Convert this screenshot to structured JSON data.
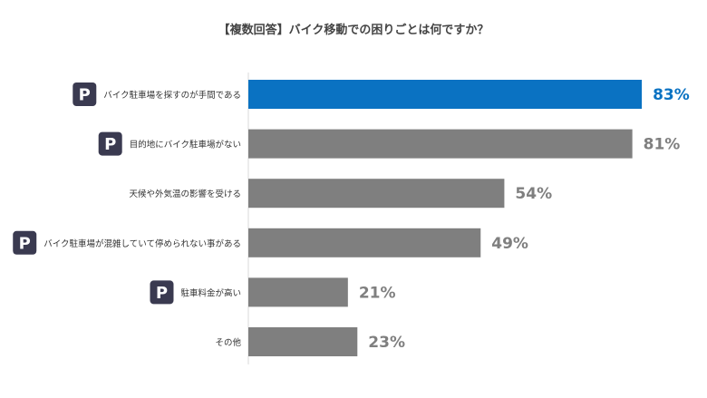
{
  "chart_data": {
    "type": "bar",
    "orientation": "horizontal",
    "title": "【複数回答】バイク移動での困りごとは何ですか？",
    "categories": [
      "バイク駐車場を探すのが手間である",
      "目的地にバイク駐車場がない",
      "天候や外気温の影響を受ける",
      "バイク駐車場が混雑していて停められない事がある",
      "駐車料金が高い",
      "その他"
    ],
    "values": [
      83,
      81,
      54,
      49,
      21,
      23
    ],
    "value_labels": [
      "83%",
      "81%",
      "54%",
      "49%",
      "21%",
      "23%"
    ],
    "parking_badge": [
      true,
      true,
      false,
      true,
      true,
      false
    ],
    "badge_text": "P",
    "highlight_index": 0,
    "xlim": [
      0,
      100
    ],
    "grid": false,
    "colors": {
      "highlight": "#0a72c2",
      "bar": "#7f7f7f",
      "label_highlight": "#0a72c2",
      "label": "#7f7f7f",
      "badge": "#3a3a50",
      "axis": "#d9d9d9"
    }
  }
}
